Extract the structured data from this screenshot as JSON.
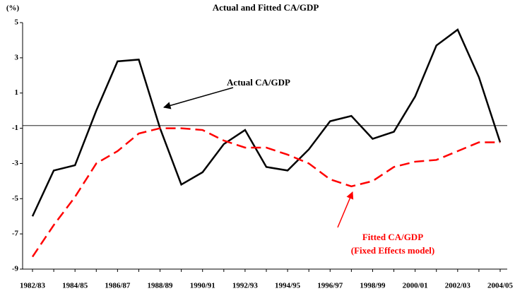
{
  "chart_data": {
    "type": "line",
    "title": "Actual and Fitted CA/GDP",
    "y_unit_label": "(%)",
    "categories": [
      "1982/83",
      null,
      "1984/85",
      null,
      "1986/87",
      null,
      "1988/89",
      null,
      "1990/91",
      null,
      "1992/93",
      null,
      "1994/95",
      null,
      "1996/97",
      null,
      "1998/99",
      null,
      "2000/01",
      null,
      "2002/03",
      null,
      "2004/05"
    ],
    "series": [
      {
        "name": "Actual CA/GDP",
        "color": "#000000",
        "dash": false,
        "values": [
          -6.0,
          -3.4,
          -3.1,
          0.0,
          2.8,
          2.9,
          -1.0,
          -4.2,
          -3.5,
          -1.9,
          -1.1,
          -3.2,
          -3.4,
          -2.2,
          -0.6,
          -0.3,
          -1.6,
          -1.2,
          0.8,
          3.7,
          4.6,
          1.9,
          -1.8
        ]
      },
      {
        "name": "Fitted CA/GDP",
        "color": "#ff0000",
        "dash": true,
        "values": [
          -8.3,
          -6.5,
          -4.9,
          -3.0,
          -2.3,
          -1.3,
          -1.0,
          -1.0,
          -1.1,
          -1.7,
          -2.1,
          -2.1,
          -2.5,
          -3.0,
          -3.9,
          -4.3,
          -4.0,
          -3.2,
          -2.9,
          -2.8,
          -2.3,
          -1.8,
          -1.8
        ]
      }
    ],
    "fitted_note": "(Fixed Effects model)",
    "reference_line": -0.85,
    "ylim": [
      -9,
      5
    ],
    "yticks": [
      -9,
      -7,
      -5,
      -3,
      -1,
      1,
      3,
      5
    ]
  }
}
